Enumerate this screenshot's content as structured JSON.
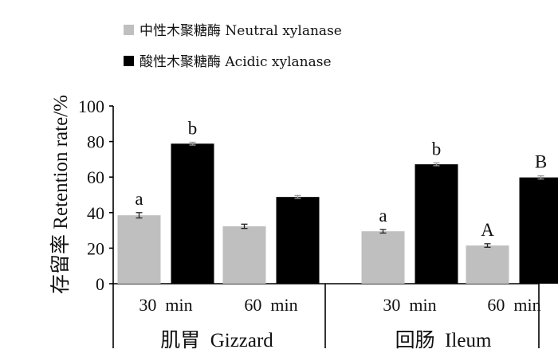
{
  "chart_data": {
    "type": "bar",
    "ylabel": "存留率  Retention rate/%",
    "ylim": [
      0,
      100
    ],
    "yticks": [
      "0",
      "20",
      "40",
      "60",
      "80",
      "100"
    ],
    "legend_position": "top-left",
    "groups": [
      {
        "label": "肌胃  Gizzard",
        "categories": [
          "30  min",
          "60  min"
        ]
      },
      {
        "label": "回肠  Ileum",
        "categories": [
          "30  min",
          "60  min"
        ]
      }
    ],
    "categories": [
      "30  min",
      "60  min",
      "30  min",
      "60  min"
    ],
    "series": [
      {
        "name": "中性木聚糖酶 Neutral xylanase",
        "color": "#bfbfbf",
        "values": [
          38.5,
          32.3,
          29.5,
          21.5
        ],
        "errors": [
          1.5,
          1.2,
          1.0,
          1.0
        ],
        "labels": [
          "a",
          "",
          "a",
          "A"
        ]
      },
      {
        "name": "酸性木聚糖酶 Acidic xylanase",
        "color": "#000000",
        "values": [
          78.8,
          48.8,
          67.2,
          59.8
        ],
        "errors": [
          0.8,
          0.8,
          0.8,
          0.9
        ],
        "labels": [
          "b",
          "",
          "b",
          "B"
        ]
      }
    ]
  }
}
